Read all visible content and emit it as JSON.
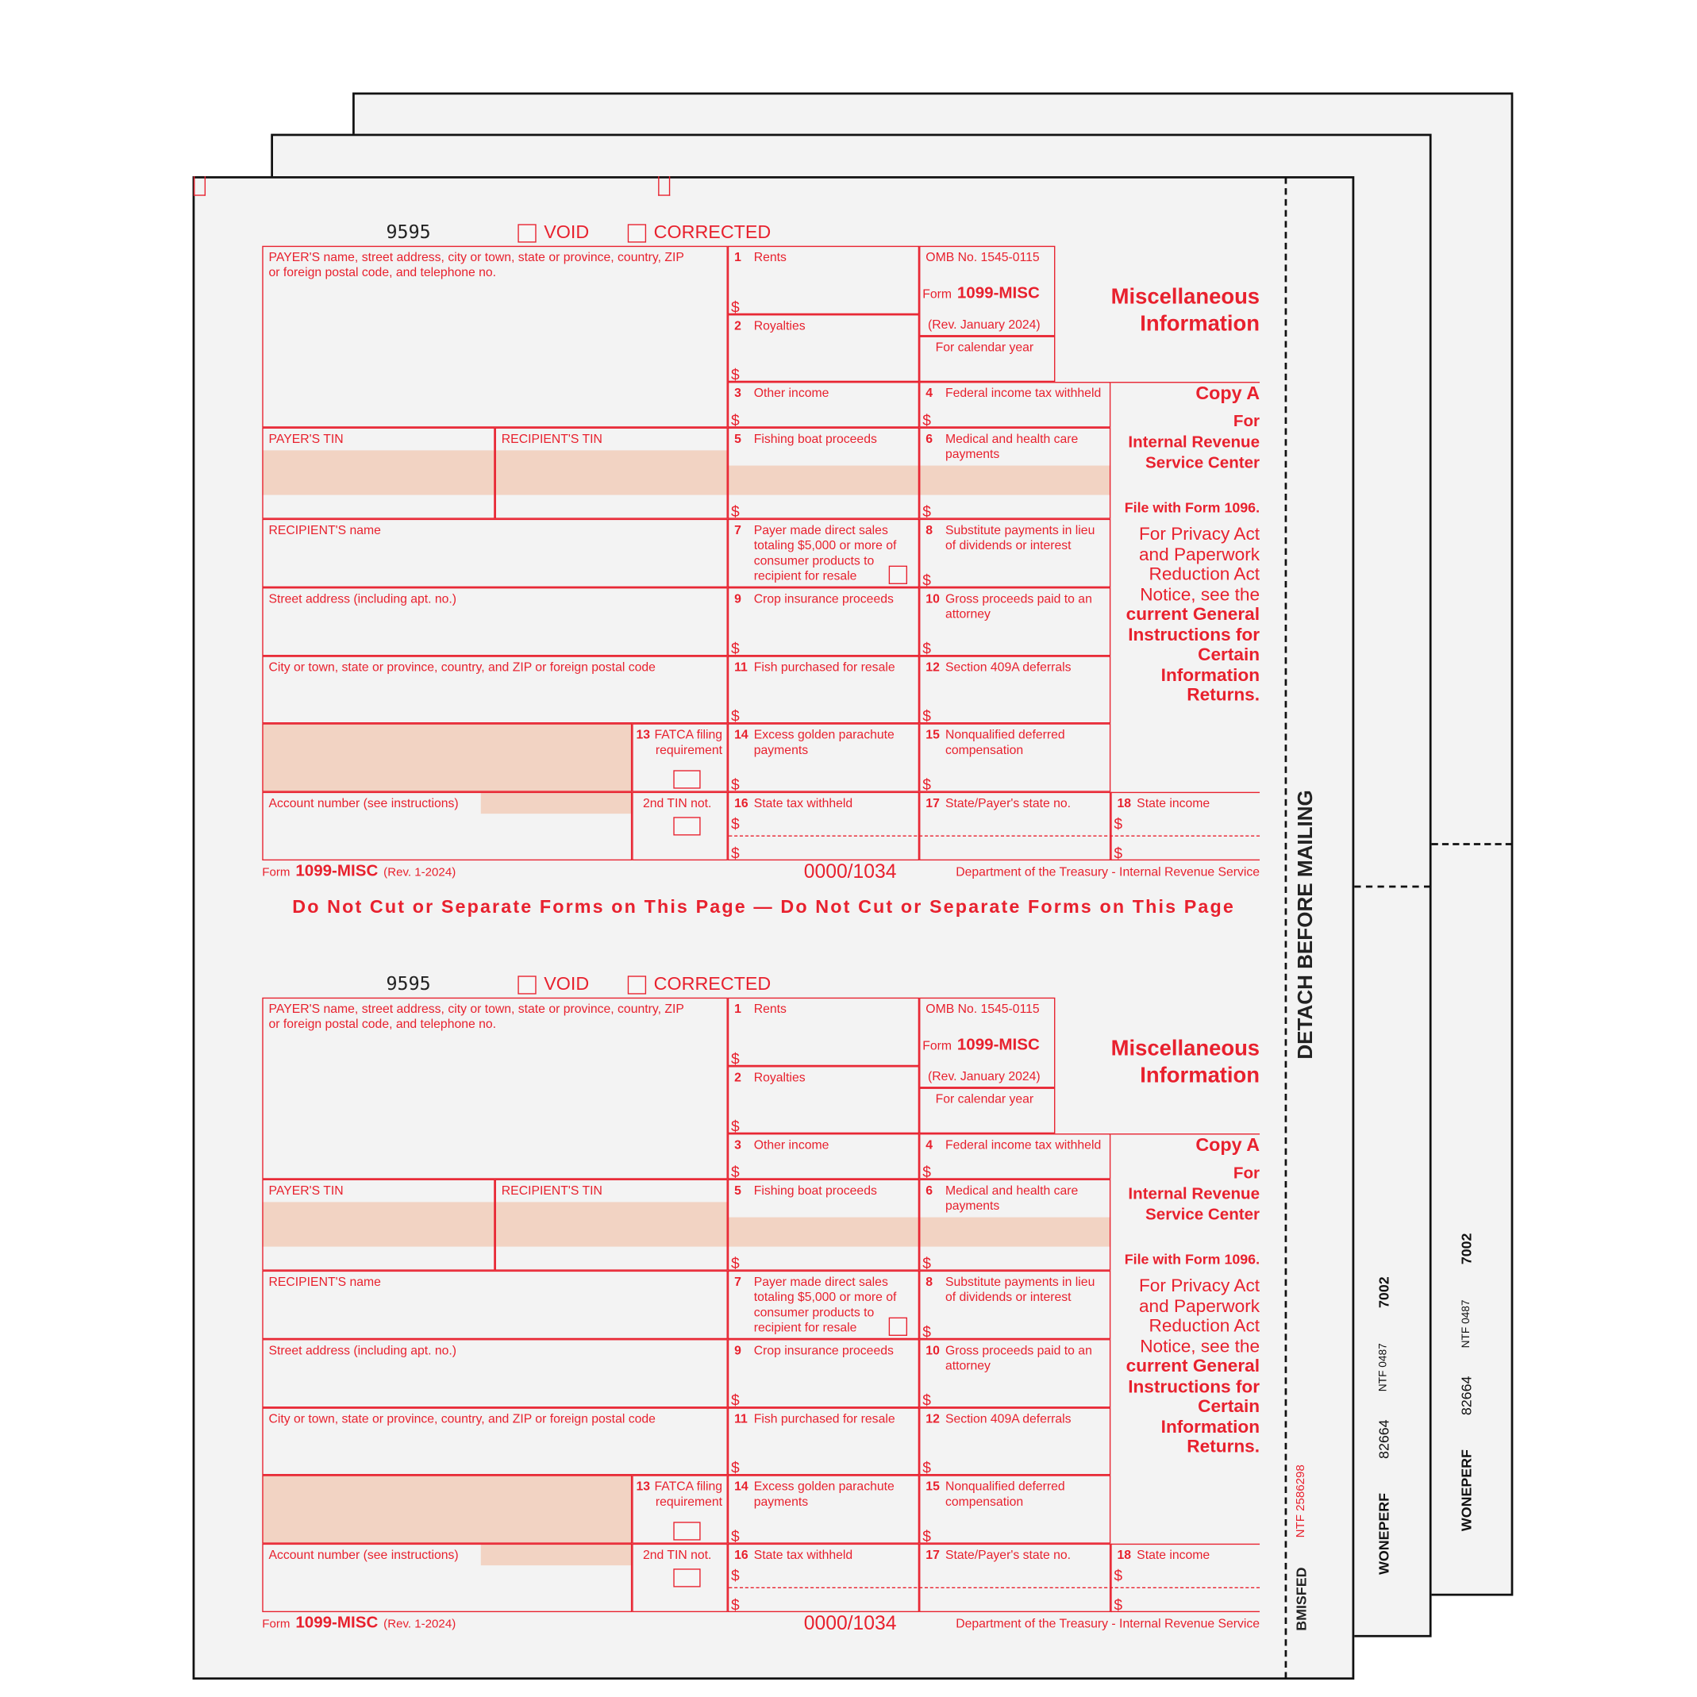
{
  "form": {
    "code": "9595",
    "void_label": "VOID",
    "corrected_label": "CORRECTED",
    "payer_label_1": "PAYER'S name, street address, city or town, state or province, country, ZIP",
    "payer_label_2": "or foreign postal code, and telephone no.",
    "omb": "OMB No. 1545-0115",
    "form_word": "Form",
    "form_name": "1099-MISC",
    "rev_long": "(Rev. January 2024)",
    "calendar_year": "For calendar year",
    "title_1": "Miscellaneous",
    "title_2": "Information",
    "copy": "Copy A",
    "for": "For",
    "irs_1": "Internal Revenue",
    "irs_2": "Service Center",
    "file_with": "File with Form 1096.",
    "privacy": [
      "For Privacy Act",
      "and Paperwork",
      "Reduction Act",
      "Notice, see the"
    ],
    "privacy_bold": [
      "current General",
      "Instructions for",
      "Certain",
      "Information",
      "Returns."
    ],
    "payer_tin": "PAYER'S TIN",
    "recipient_tin": "RECIPIENT'S TIN",
    "recipient_name": "RECIPIENT'S name",
    "street": "Street address (including apt. no.)",
    "city": "City or town, state or province, country, and ZIP or foreign postal code",
    "account": "Account number (see instructions)",
    "second_tin": "2nd TIN not.",
    "dollar": "$",
    "boxes": {
      "b1": {
        "num": "1",
        "label": [
          "Rents"
        ]
      },
      "b2": {
        "num": "2",
        "label": [
          "Royalties"
        ]
      },
      "b3": {
        "num": "3",
        "label": [
          "Other income"
        ]
      },
      "b4": {
        "num": "4",
        "label": [
          "Federal income tax withheld"
        ]
      },
      "b5": {
        "num": "5",
        "label": [
          "Fishing boat proceeds"
        ]
      },
      "b6": {
        "num": "6",
        "label": [
          "Medical and health care",
          "payments"
        ]
      },
      "b7": {
        "num": "7",
        "label": [
          "Payer made direct sales",
          "totaling $5,000 or more of",
          "consumer products to",
          "recipient for resale"
        ]
      },
      "b8": {
        "num": "8",
        "label": [
          "Substitute payments in lieu",
          "of dividends or interest"
        ]
      },
      "b9": {
        "num": "9",
        "label": [
          "Crop insurance proceeds"
        ]
      },
      "b10": {
        "num": "10",
        "label": [
          "Gross proceeds paid to an",
          "attorney"
        ]
      },
      "b11": {
        "num": "11",
        "label": [
          "Fish purchased for resale"
        ]
      },
      "b12": {
        "num": "12",
        "label": [
          "Section 409A deferrals"
        ]
      },
      "b13": {
        "num": "13",
        "label": [
          "FATCA filing",
          "requirement"
        ]
      },
      "b14": {
        "num": "14",
        "label": [
          "Excess golden parachute",
          "payments"
        ]
      },
      "b15": {
        "num": "15",
        "label": [
          "Nonqualified deferred",
          "compensation"
        ]
      },
      "b16": {
        "num": "16",
        "label": [
          "State tax withheld"
        ]
      },
      "b17": {
        "num": "17",
        "label": [
          "State/Payer's state no."
        ]
      },
      "b18": {
        "num": "18",
        "label": [
          "State income"
        ]
      }
    },
    "footer_form_word": "Form",
    "footer_form_name": "1099-MISC",
    "footer_rev": "(Rev. 1-2024)",
    "footer_code": "0000/1034",
    "footer_dept": "Department of the Treasury - Internal Revenue Service"
  },
  "do_not_cut": "Do Not Cut or Separate Forms on This Page — Do Not Cut or Separate Forms on This Page",
  "side": {
    "detach": "DETACH BEFORE MAILING",
    "bmisfed": "BMISFED",
    "ntf_front": "NTF 2586298",
    "sheet_codes": {
      "woneperf": "WONEPERF",
      "num": "82664",
      "ntf": "NTF 0487",
      "code": "7002"
    }
  },
  "colors": {
    "form_red": "#e8212e",
    "shade": "#f2d3c3",
    "paper": "#f3f3f3"
  }
}
